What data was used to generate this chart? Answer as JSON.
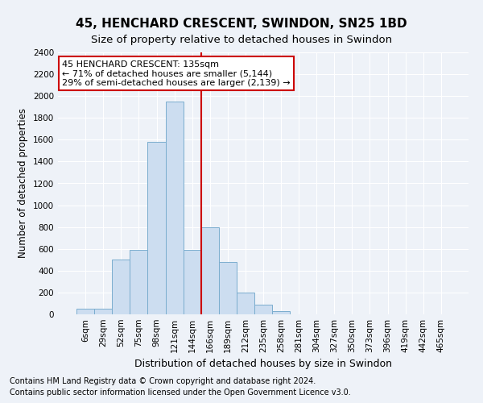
{
  "title": "45, HENCHARD CRESCENT, SWINDON, SN25 1BD",
  "subtitle": "Size of property relative to detached houses in Swindon",
  "xlabel": "Distribution of detached houses by size in Swindon",
  "ylabel": "Number of detached properties",
  "footnote1": "Contains HM Land Registry data © Crown copyright and database right 2024.",
  "footnote2": "Contains public sector information licensed under the Open Government Licence v3.0.",
  "annotation_line1": "45 HENCHARD CRESCENT: 135sqm",
  "annotation_line2": "← 71% of detached houses are smaller (5,144)",
  "annotation_line3": "29% of semi-detached houses are larger (2,139) →",
  "bar_labels": [
    "6sqm",
    "29sqm",
    "52sqm",
    "75sqm",
    "98sqm",
    "121sqm",
    "144sqm",
    "166sqm",
    "189sqm",
    "212sqm",
    "235sqm",
    "258sqm",
    "281sqm",
    "304sqm",
    "327sqm",
    "350sqm",
    "373sqm",
    "396sqm",
    "419sqm",
    "442sqm",
    "465sqm"
  ],
  "bar_values": [
    50,
    50,
    500,
    590,
    1580,
    1950,
    590,
    800,
    480,
    200,
    90,
    30,
    0,
    0,
    0,
    0,
    0,
    0,
    0,
    0,
    0
  ],
  "bar_color": "#ccddf0",
  "bar_edge_color": "#7aadce",
  "vline_color": "#cc0000",
  "vline_position": 6.5,
  "ylim": [
    0,
    2400
  ],
  "yticks": [
    0,
    200,
    400,
    600,
    800,
    1000,
    1200,
    1400,
    1600,
    1800,
    2000,
    2200,
    2400
  ],
  "background_color": "#eef2f8",
  "grid_color": "#ffffff",
  "annotation_box_facecolor": "#ffffff",
  "annotation_box_edgecolor": "#cc0000",
  "title_fontsize": 11,
  "subtitle_fontsize": 9.5,
  "ylabel_fontsize": 8.5,
  "xlabel_fontsize": 9,
  "tick_fontsize": 7.5,
  "annotation_fontsize": 8,
  "footnote_fontsize": 7
}
